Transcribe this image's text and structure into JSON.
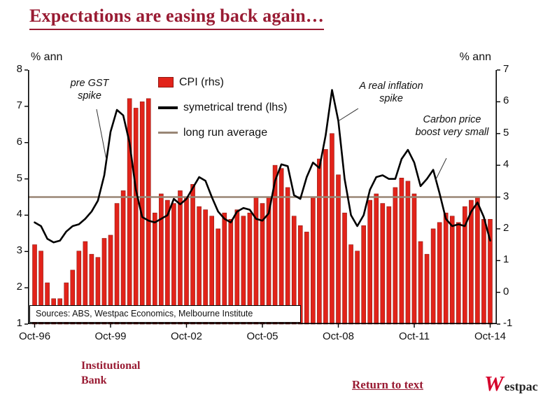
{
  "chart_data": {
    "type": "bar",
    "title": "Expectations are easing back again…",
    "frequency": "quarterly",
    "x_range": {
      "start": "Oct-96",
      "end": "Oct-14"
    },
    "x_tick_labels": [
      "Oct-96",
      "Oct-99",
      "Oct-02",
      "Oct-05",
      "Oct-08",
      "Oct-11",
      "Oct-14"
    ],
    "left_axis": {
      "title": "% ann",
      "min": 1,
      "max": 8,
      "ticks": [
        8,
        7,
        6,
        5,
        4,
        3,
        2,
        1
      ]
    },
    "right_axis": {
      "title": "% ann",
      "min": -1,
      "max": 7,
      "ticks": [
        7,
        6,
        5,
        4,
        3,
        2,
        1,
        0,
        -1
      ]
    },
    "series": [
      {
        "name": "CPI (rhs)",
        "type": "bar",
        "axis": "right",
        "color": "#e2231a",
        "edge_color": "#8f1812",
        "values": [
          1.5,
          1.3,
          0.3,
          -0.2,
          -0.2,
          0.3,
          0.7,
          1.3,
          1.6,
          1.2,
          1.1,
          1.7,
          1.8,
          2.8,
          3.2,
          6.1,
          5.8,
          6.0,
          6.1,
          2.5,
          3.1,
          2.9,
          2.8,
          3.2,
          3.0,
          3.4,
          2.7,
          2.6,
          2.4,
          2.0,
          2.5,
          2.3,
          2.6,
          2.4,
          2.5,
          3.0,
          2.8,
          3.0,
          4.0,
          3.9,
          3.3,
          2.4,
          2.1,
          1.9,
          3.0,
          4.2,
          4.5,
          5.0,
          3.7,
          2.5,
          1.5,
          1.3,
          2.1,
          2.9,
          3.1,
          2.8,
          2.7,
          3.3,
          3.6,
          3.5,
          3.1,
          1.6,
          1.2,
          2.0,
          2.2,
          2.5,
          2.4,
          2.2,
          2.7,
          2.9,
          3.0,
          2.3,
          2.3
        ]
      },
      {
        "name": "symetrical trend (lhs)",
        "type": "line",
        "axis": "left",
        "color": "#000000",
        "values": [
          3.8,
          3.7,
          3.35,
          3.25,
          3.3,
          3.55,
          3.7,
          3.75,
          3.9,
          4.1,
          4.4,
          5.1,
          6.3,
          6.9,
          6.75,
          6.0,
          4.7,
          3.95,
          3.85,
          3.8,
          3.9,
          4.0,
          4.45,
          4.3,
          4.45,
          4.75,
          5.05,
          4.95,
          4.5,
          4.1,
          3.9,
          3.8,
          4.1,
          4.2,
          4.15,
          3.9,
          3.85,
          4.05,
          4.95,
          5.4,
          5.35,
          4.55,
          4.45,
          5.05,
          5.45,
          5.3,
          6.2,
          7.45,
          6.6,
          5.0,
          4.0,
          3.7,
          4.0,
          4.7,
          5.05,
          5.1,
          5.0,
          5.0,
          5.55,
          5.8,
          5.45,
          4.8,
          5.0,
          5.25,
          4.6,
          3.9,
          3.7,
          3.75,
          3.7,
          4.1,
          4.35,
          3.95,
          3.3
        ]
      },
      {
        "name": "long run average",
        "type": "line-constant",
        "axis": "left",
        "color": "#998675",
        "value": 4.5
      }
    ],
    "annotations": [
      {
        "text": "pre GST spike"
      },
      {
        "text": "A real inflation spike"
      },
      {
        "text": "Carbon price boost very small"
      }
    ],
    "source": "Sources: ABS, Westpac Economics, Melbourne Institute"
  },
  "footer": {
    "institutional_line1": "Institutional",
    "institutional_line2": "Bank",
    "return_link": "Return to text",
    "westpac_w": "W",
    "westpac_rest": "estpac"
  },
  "colors": {
    "heading_maroon": "#991b33",
    "bar_red": "#e2231a",
    "long_run_average": "#998675",
    "westpac_red": "#d5002b"
  }
}
